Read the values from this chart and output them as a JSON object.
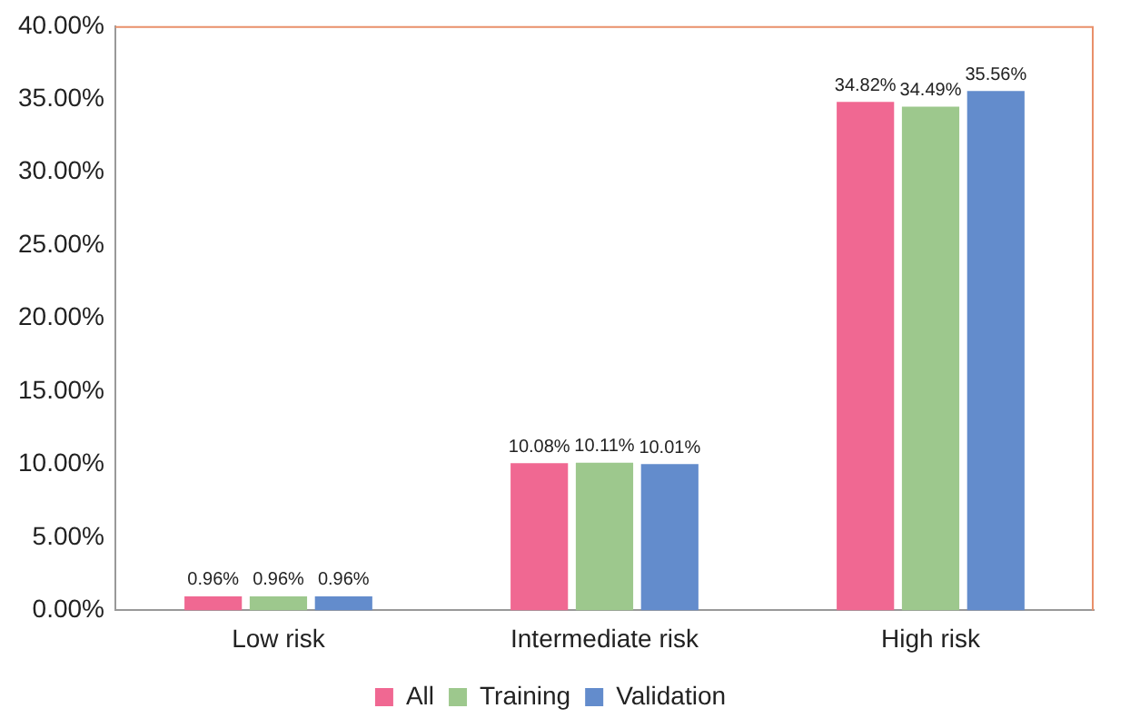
{
  "chart_data": {
    "type": "bar",
    "categories": [
      "Low risk",
      "Intermediate risk",
      "High risk"
    ],
    "series": [
      {
        "name": "All",
        "color": "#f06892",
        "values": [
          0.96,
          10.08,
          34.82
        ],
        "value_labels": [
          "0.96%",
          "10.08%",
          "34.82%"
        ]
      },
      {
        "name": "Training",
        "color": "#9dc88d",
        "values": [
          0.96,
          10.11,
          34.49
        ],
        "value_labels": [
          "0.96%",
          "10.11%",
          "34.49%"
        ]
      },
      {
        "name": "Validation",
        "color": "#638ccc",
        "values": [
          0.96,
          10.01,
          35.56
        ],
        "value_labels": [
          "0.96%",
          "10.01%",
          "35.56%"
        ]
      }
    ],
    "ylim": [
      0,
      40
    ],
    "yticks": [
      {
        "value": 0,
        "label": "0.00%"
      },
      {
        "value": 5,
        "label": "5.00%"
      },
      {
        "value": 10,
        "label": "10.00%"
      },
      {
        "value": 15,
        "label": "15.00%"
      },
      {
        "value": 20,
        "label": "20.00%"
      },
      {
        "value": 25,
        "label": "25.00%"
      },
      {
        "value": 30,
        "label": "30.00%"
      },
      {
        "value": 35,
        "label": "35.00%"
      },
      {
        "value": 40,
        "label": "40.00%"
      }
    ],
    "grid": false,
    "legend": "bottom"
  }
}
